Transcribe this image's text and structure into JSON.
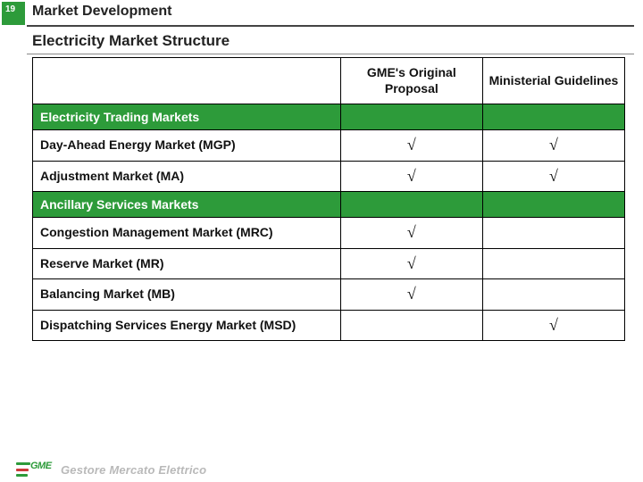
{
  "page_number": "19",
  "section_title": "Market Development",
  "subtitle": "Electricity Market Structure",
  "check_glyph": "√",
  "colors": {
    "brand_green": "#2d9b3a",
    "text": "#111111",
    "footer_gray": "#b9b9b9",
    "rule_dark": "#444444",
    "rule_light": "#888888",
    "border": "#000000",
    "background": "#ffffff"
  },
  "table": {
    "column_widths_pct": [
      52,
      24,
      24
    ],
    "header": {
      "col_a": "GME's Original Proposal",
      "col_b": "Ministerial Guidelines"
    },
    "header_fontsize": 14,
    "section_fontsize": 14,
    "row_fontsize": 14,
    "check_fontsize": 18,
    "rows": [
      {
        "type": "section",
        "label": "Electricity Trading Markets"
      },
      {
        "type": "data",
        "label": "Day-Ahead Energy Market (MGP)",
        "a": true,
        "b": true
      },
      {
        "type": "data",
        "label": "Adjustment Market (MA)",
        "a": true,
        "b": true
      },
      {
        "type": "section",
        "label": "Ancillary Services Markets"
      },
      {
        "type": "data",
        "label": "Congestion Management Market (MRC)",
        "a": true,
        "b": false
      },
      {
        "type": "data",
        "label": "Reserve Market (MR)",
        "a": true,
        "b": false
      },
      {
        "type": "data",
        "label": "Balancing Market (MB)",
        "a": true,
        "b": false
      },
      {
        "type": "data",
        "label": "Dispatching Services Energy Market (MSD)",
        "a": false,
        "b": true
      }
    ]
  },
  "footer": {
    "logo_text": "GME",
    "company": "Gestore Mercato Elettrico"
  }
}
